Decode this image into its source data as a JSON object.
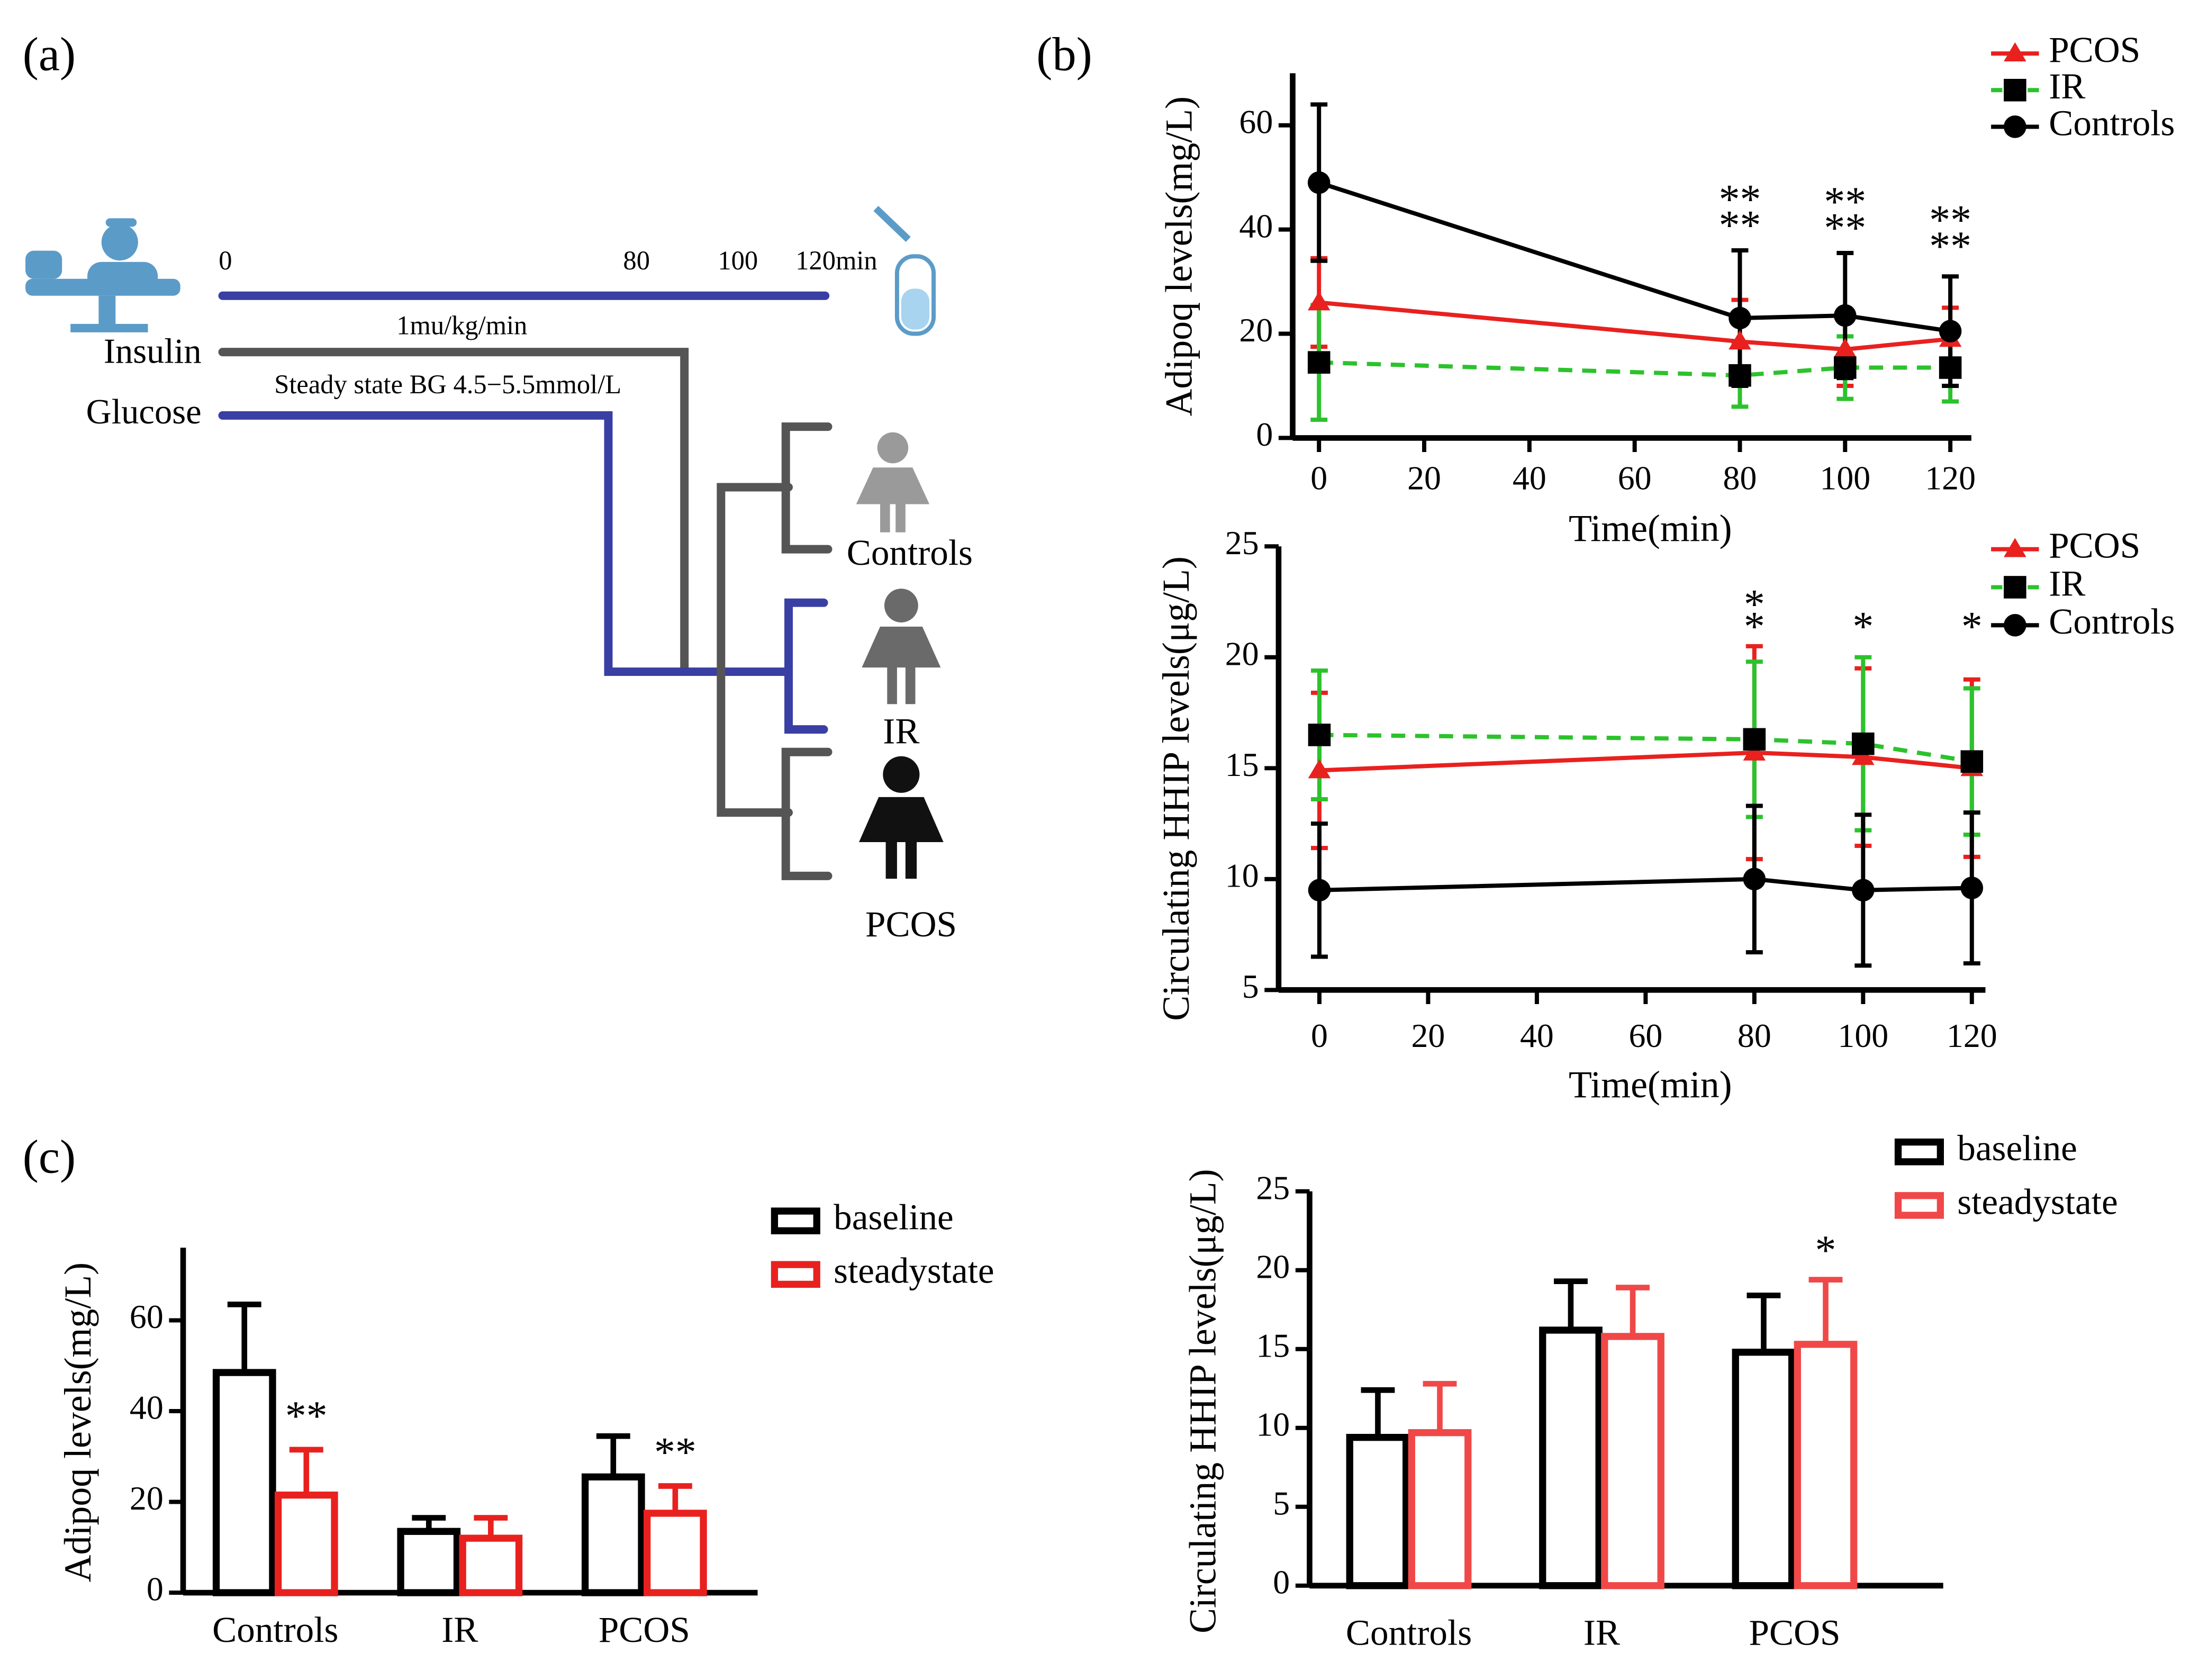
{
  "panels": [
    "(a)",
    "(b)",
    "(c)"
  ],
  "diagram": {
    "times": [
      "0",
      "80",
      "100",
      "120min"
    ],
    "rate": "1mu/kg/min",
    "insulin": "Insulin",
    "steady": "Steady state BG 4.5−5.5mmol/L",
    "glucose": "Glucose",
    "groups": [
      "Controls",
      "IR",
      "PCOS"
    ]
  },
  "chart_data": [
    {
      "type": "line",
      "ylabel": "Adipoq levels(mg/L)",
      "xlabel": "Time(min)",
      "x": [
        0,
        80,
        100,
        120
      ],
      "xlim": [
        -5,
        124
      ],
      "xticks": [
        0,
        20,
        40,
        60,
        80,
        100,
        120
      ],
      "ylim": [
        0,
        70
      ],
      "yticks": [
        0,
        20,
        40,
        60
      ],
      "legend": "upper right",
      "series": [
        {
          "name": "PCOS",
          "color": "#e8211f",
          "marker": "triangle",
          "dash": false,
          "values": [
            26,
            18.5,
            17,
            19
          ],
          "errors": [
            8.5,
            8,
            7,
            6
          ]
        },
        {
          "name": "IR",
          "color": "#2cc22c",
          "marker": "square",
          "dash": true,
          "values": [
            14.5,
            12,
            13.5,
            13.5
          ],
          "errors": [
            11,
            6,
            6,
            6.5
          ]
        },
        {
          "name": "Controls",
          "color": "#000000",
          "marker": "circle",
          "dash": false,
          "values": [
            49,
            23,
            23.5,
            20.5
          ],
          "errors": [
            15,
            13,
            12,
            10.5
          ]
        }
      ],
      "annotations": [
        {
          "text": "**",
          "x": 80,
          "y": 45,
          "color": "#000000"
        },
        {
          "text": "**",
          "x": 80,
          "y": 40,
          "color": "#e8211f"
        },
        {
          "text": "**",
          "x": 100,
          "y": 44.5,
          "color": "#000000"
        },
        {
          "text": "**",
          "x": 100,
          "y": 39.5,
          "color": "#e8211f"
        },
        {
          "text": "**",
          "x": 120,
          "y": 41,
          "color": "#000000"
        },
        {
          "text": "**",
          "x": 120,
          "y": 36,
          "color": "#e8211f"
        }
      ]
    },
    {
      "type": "line",
      "ylabel": "Circulating HHIP levels(μg/L)",
      "xlabel": "Time(min)",
      "x": [
        0,
        80,
        100,
        120
      ],
      "xlim": [
        -7.5,
        122.5
      ],
      "xticks": [
        0,
        20,
        40,
        60,
        80,
        100,
        120
      ],
      "ylim": [
        5,
        25
      ],
      "yticks": [
        5,
        10,
        15,
        20,
        25
      ],
      "legend": "upper right",
      "series": [
        {
          "name": "PCOS",
          "color": "#e8211f",
          "marker": "triangle",
          "dash": false,
          "values": [
            14.9,
            15.7,
            15.5,
            15.0
          ],
          "errors": [
            3.5,
            4.8,
            4,
            4
          ]
        },
        {
          "name": "IR",
          "color": "#2cc22c",
          "marker": "square",
          "dash": true,
          "values": [
            16.5,
            16.3,
            16.1,
            15.3
          ],
          "errors": [
            2.9,
            3.5,
            3.9,
            3.3
          ]
        },
        {
          "name": "Controls",
          "color": "#000000",
          "marker": "circle",
          "dash": false,
          "values": [
            9.5,
            10,
            9.5,
            9.6
          ],
          "errors": [
            3,
            3.3,
            3.4,
            3.4
          ]
        }
      ],
      "annotations": [
        {
          "text": "*",
          "x": 80,
          "y": 22.2,
          "color": "#000000"
        },
        {
          "text": "*",
          "x": 80,
          "y": 21.2,
          "color": "#e8211f"
        },
        {
          "text": "*",
          "x": 100,
          "y": 21.2,
          "color": "#e8211f"
        },
        {
          "text": "*",
          "x": 120,
          "y": 21.2,
          "color": "#2cc22c"
        }
      ]
    },
    {
      "type": "bar",
      "ylabel": "Adipoq levels(mg/L)",
      "categories": [
        "Controls",
        "IR",
        "PCOS"
      ],
      "ylim": [
        0,
        76
      ],
      "yticks": [
        0,
        20,
        40,
        60
      ],
      "legend": "upper right",
      "series": [
        {
          "name": "baseline",
          "color": "#000000",
          "values": [
            48.5,
            13.5,
            25.5
          ],
          "errors": [
            15,
            3,
            9
          ]
        },
        {
          "name": "steadystate",
          "color": "#e8211f",
          "values": [
            21.5,
            12,
            17.5
          ],
          "errors": [
            10,
            4.5,
            6
          ]
        }
      ],
      "annotations": [
        {
          "text": "**",
          "category": "Controls",
          "series": "steadystate",
          "y": 38,
          "color": "#000000"
        },
        {
          "text": "**",
          "category": "PCOS",
          "series": "steadystate",
          "y": 30,
          "color": "#000000"
        }
      ]
    },
    {
      "type": "bar",
      "ylabel": "Circulating HHIP levels(μg/L)",
      "categories": [
        "Controls",
        "IR",
        "PCOS"
      ],
      "ylim": [
        0,
        25
      ],
      "yticks": [
        0,
        5,
        10,
        15,
        20,
        25
      ],
      "legend": "upper right",
      "series": [
        {
          "name": "baseline",
          "color": "#000000",
          "values": [
            9.4,
            16.2,
            14.8
          ],
          "errors": [
            3,
            3.1,
            3.6
          ]
        },
        {
          "name": "steadystate",
          "color": "#f04848",
          "values": [
            9.7,
            15.8,
            15.3
          ],
          "errors": [
            3.1,
            3.1,
            4.1
          ]
        }
      ],
      "annotations": [
        {
          "text": "*",
          "category": "PCOS",
          "series": "steadystate",
          "y": 21,
          "color": "#000000"
        }
      ]
    }
  ]
}
